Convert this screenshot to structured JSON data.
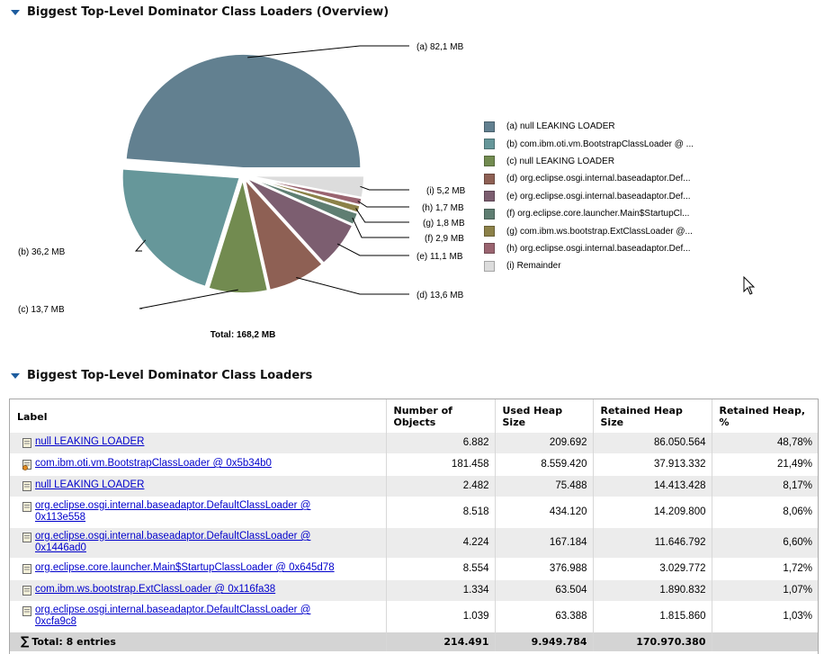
{
  "overview": {
    "title": "Biggest Top-Level Dominator Class Loaders (Overview)",
    "total_label": "Total: 168,2 MB"
  },
  "chart_data": {
    "type": "pie",
    "slices": [
      {
        "key": "(a)",
        "label": "(a) 82,1 MB",
        "value": 82.1,
        "legend": "(a)  null LEAKING LOADER",
        "color": "#628090"
      },
      {
        "key": "(b)",
        "label": "(b)  36,2 MB",
        "value": 36.2,
        "legend": "(b)  com.ibm.oti.vm.BootstrapClassLoader @ ...",
        "color": "#66979a"
      },
      {
        "key": "(c)",
        "label": "(c)  13,7 MB",
        "value": 13.7,
        "legend": "(c)  null LEAKING LOADER",
        "color": "#728b50"
      },
      {
        "key": "(d)",
        "label": "(d)  13,6 MB",
        "value": 13.6,
        "legend": "(d)  org.eclipse.osgi.internal.baseadaptor.Def...",
        "color": "#8e6054"
      },
      {
        "key": "(e)",
        "label": "(e)  11,1 MB",
        "value": 11.1,
        "legend": "(e)  org.eclipse.osgi.internal.baseadaptor.Def...",
        "color": "#7c5e70"
      },
      {
        "key": "(f)",
        "label": "(f)  2,9 MB",
        "value": 2.9,
        "legend": "(f)  org.eclipse.core.launcher.Main$StartupCl...",
        "color": "#5f7e72"
      },
      {
        "key": "(g)",
        "label": "(g)  1,8 MB",
        "value": 1.8,
        "legend": "(g)  com.ibm.ws.bootstrap.ExtClassLoader @...",
        "color": "#8c8148"
      },
      {
        "key": "(h)",
        "label": "(h)  1,7 MB",
        "value": 1.7,
        "legend": "(h)  org.eclipse.osgi.internal.baseadaptor.Def...",
        "color": "#9a6470"
      },
      {
        "key": "(i)",
        "label": "(i)  5,2 MB",
        "value": 5.2,
        "legend": "(i)  Remainder",
        "color": "#dcdcdc"
      }
    ]
  },
  "table_section": {
    "title": "Biggest Top-Level Dominator Class Loaders",
    "headers": [
      "Label",
      "Number of Objects",
      "Used Heap Size",
      "Retained Heap Size",
      "Retained Heap, %"
    ],
    "rows": [
      {
        "label": "null LEAKING LOADER",
        "objects": "6.882",
        "used": "209.692",
        "retained": "86.050.564",
        "pct": "48,78%"
      },
      {
        "label": "com.ibm.oti.vm.BootstrapClassLoader @ 0x5b34b0",
        "objects": "181.458",
        "used": "8.559.420",
        "retained": "37.913.332",
        "pct": "21,49%"
      },
      {
        "label": "null LEAKING LOADER",
        "objects": "2.482",
        "used": "75.488",
        "retained": "14.413.428",
        "pct": "8,17%"
      },
      {
        "label": "org.eclipse.osgi.internal.baseadaptor.DefaultClassLoader @ 0x113e558",
        "objects": "8.518",
        "used": "434.120",
        "retained": "14.209.800",
        "pct": "8,06%"
      },
      {
        "label": "org.eclipse.osgi.internal.baseadaptor.DefaultClassLoader @ 0x1446ad0",
        "objects": "4.224",
        "used": "167.184",
        "retained": "11.646.792",
        "pct": "6,60%"
      },
      {
        "label": "org.eclipse.core.launcher.Main$StartupClassLoader @ 0x645d78",
        "objects": "8.554",
        "used": "376.988",
        "retained": "3.029.772",
        "pct": "1,72%"
      },
      {
        "label": "com.ibm.ws.bootstrap.ExtClassLoader @ 0x116fa38",
        "objects": "1.334",
        "used": "63.504",
        "retained": "1.890.832",
        "pct": "1,07%"
      },
      {
        "label": "org.eclipse.osgi.internal.baseadaptor.DefaultClassLoader @ 0xcfa9c8",
        "objects": "1.039",
        "used": "63.388",
        "retained": "1.815.860",
        "pct": "1,03%"
      }
    ],
    "total": {
      "label": "Total: 8 entries",
      "objects": "214.491",
      "used": "9.949.784",
      "retained": "170.970.380",
      "pct": ""
    }
  }
}
